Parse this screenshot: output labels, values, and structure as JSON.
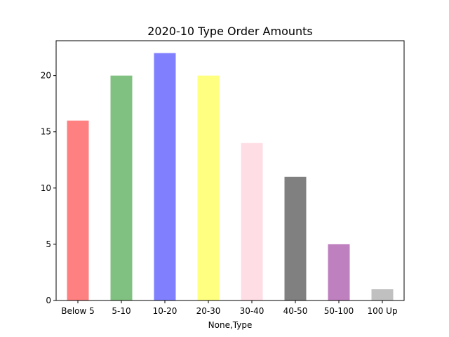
{
  "chart_data": {
    "type": "bar",
    "title": "2020-10 Type Order Amounts",
    "xlabel": "None,Type",
    "ylabel": "",
    "categories": [
      "Below 5",
      "5-10",
      "10-20",
      "20-30",
      "30-40",
      "40-50",
      "50-100",
      "100 Up"
    ],
    "values": [
      16,
      20,
      22,
      20,
      14,
      11,
      5,
      1
    ],
    "colors": [
      "#ff8080",
      "#80c080",
      "#8080ff",
      "#ffff80",
      "#ffdde4",
      "#808080",
      "#bf80bf",
      "#c0c0c0"
    ],
    "ylim": [
      0,
      23.1
    ],
    "yticks": [
      0,
      5,
      10,
      15,
      20
    ],
    "grid": false,
    "legend": "none"
  }
}
